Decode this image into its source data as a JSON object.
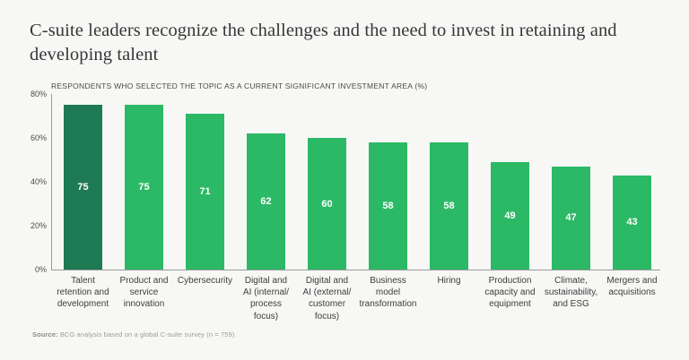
{
  "header": {
    "title": "C-suite leaders recognize the challenges and the need to invest in retaining and\ndeveloping talent"
  },
  "chart_data": {
    "type": "bar",
    "title": "RESPONDENTS WHO SELECTED THE TOPIC AS A CURRENT SIGNIFICANT INVESTMENT AREA (%)",
    "categories": [
      "Talent\nretention and\ndevelopment",
      "Product and\nservice\ninnovation",
      "Cybersecurity",
      "Digital and\nAI (internal/\nprocess\nfocus)",
      "Digital and\nAI (external/\ncustomer\nfocus)",
      "Business\nmodel\ntransformation",
      "Hiring",
      "Production\ncapacity and\nequipment",
      "Climate,\nsustainability,\nand ESG",
      "Mergers and\nacquisitions"
    ],
    "values": [
      75,
      75,
      71,
      62,
      60,
      58,
      58,
      49,
      47,
      43
    ],
    "xlabel": "",
    "ylabel": "",
    "ylim": [
      0,
      80
    ],
    "yticks": [
      0,
      20,
      40,
      60,
      80
    ],
    "ytick_suffix": "%",
    "grid": false,
    "legend": false,
    "bar_color": "#2CB966",
    "highlight_index": 0,
    "highlight_color": "#1E7A52",
    "value_label_color": "#FFFFFF"
  },
  "source": {
    "label": "Source:",
    "text": "BCG analysis based on a global C-suite survey (n = 759)."
  }
}
